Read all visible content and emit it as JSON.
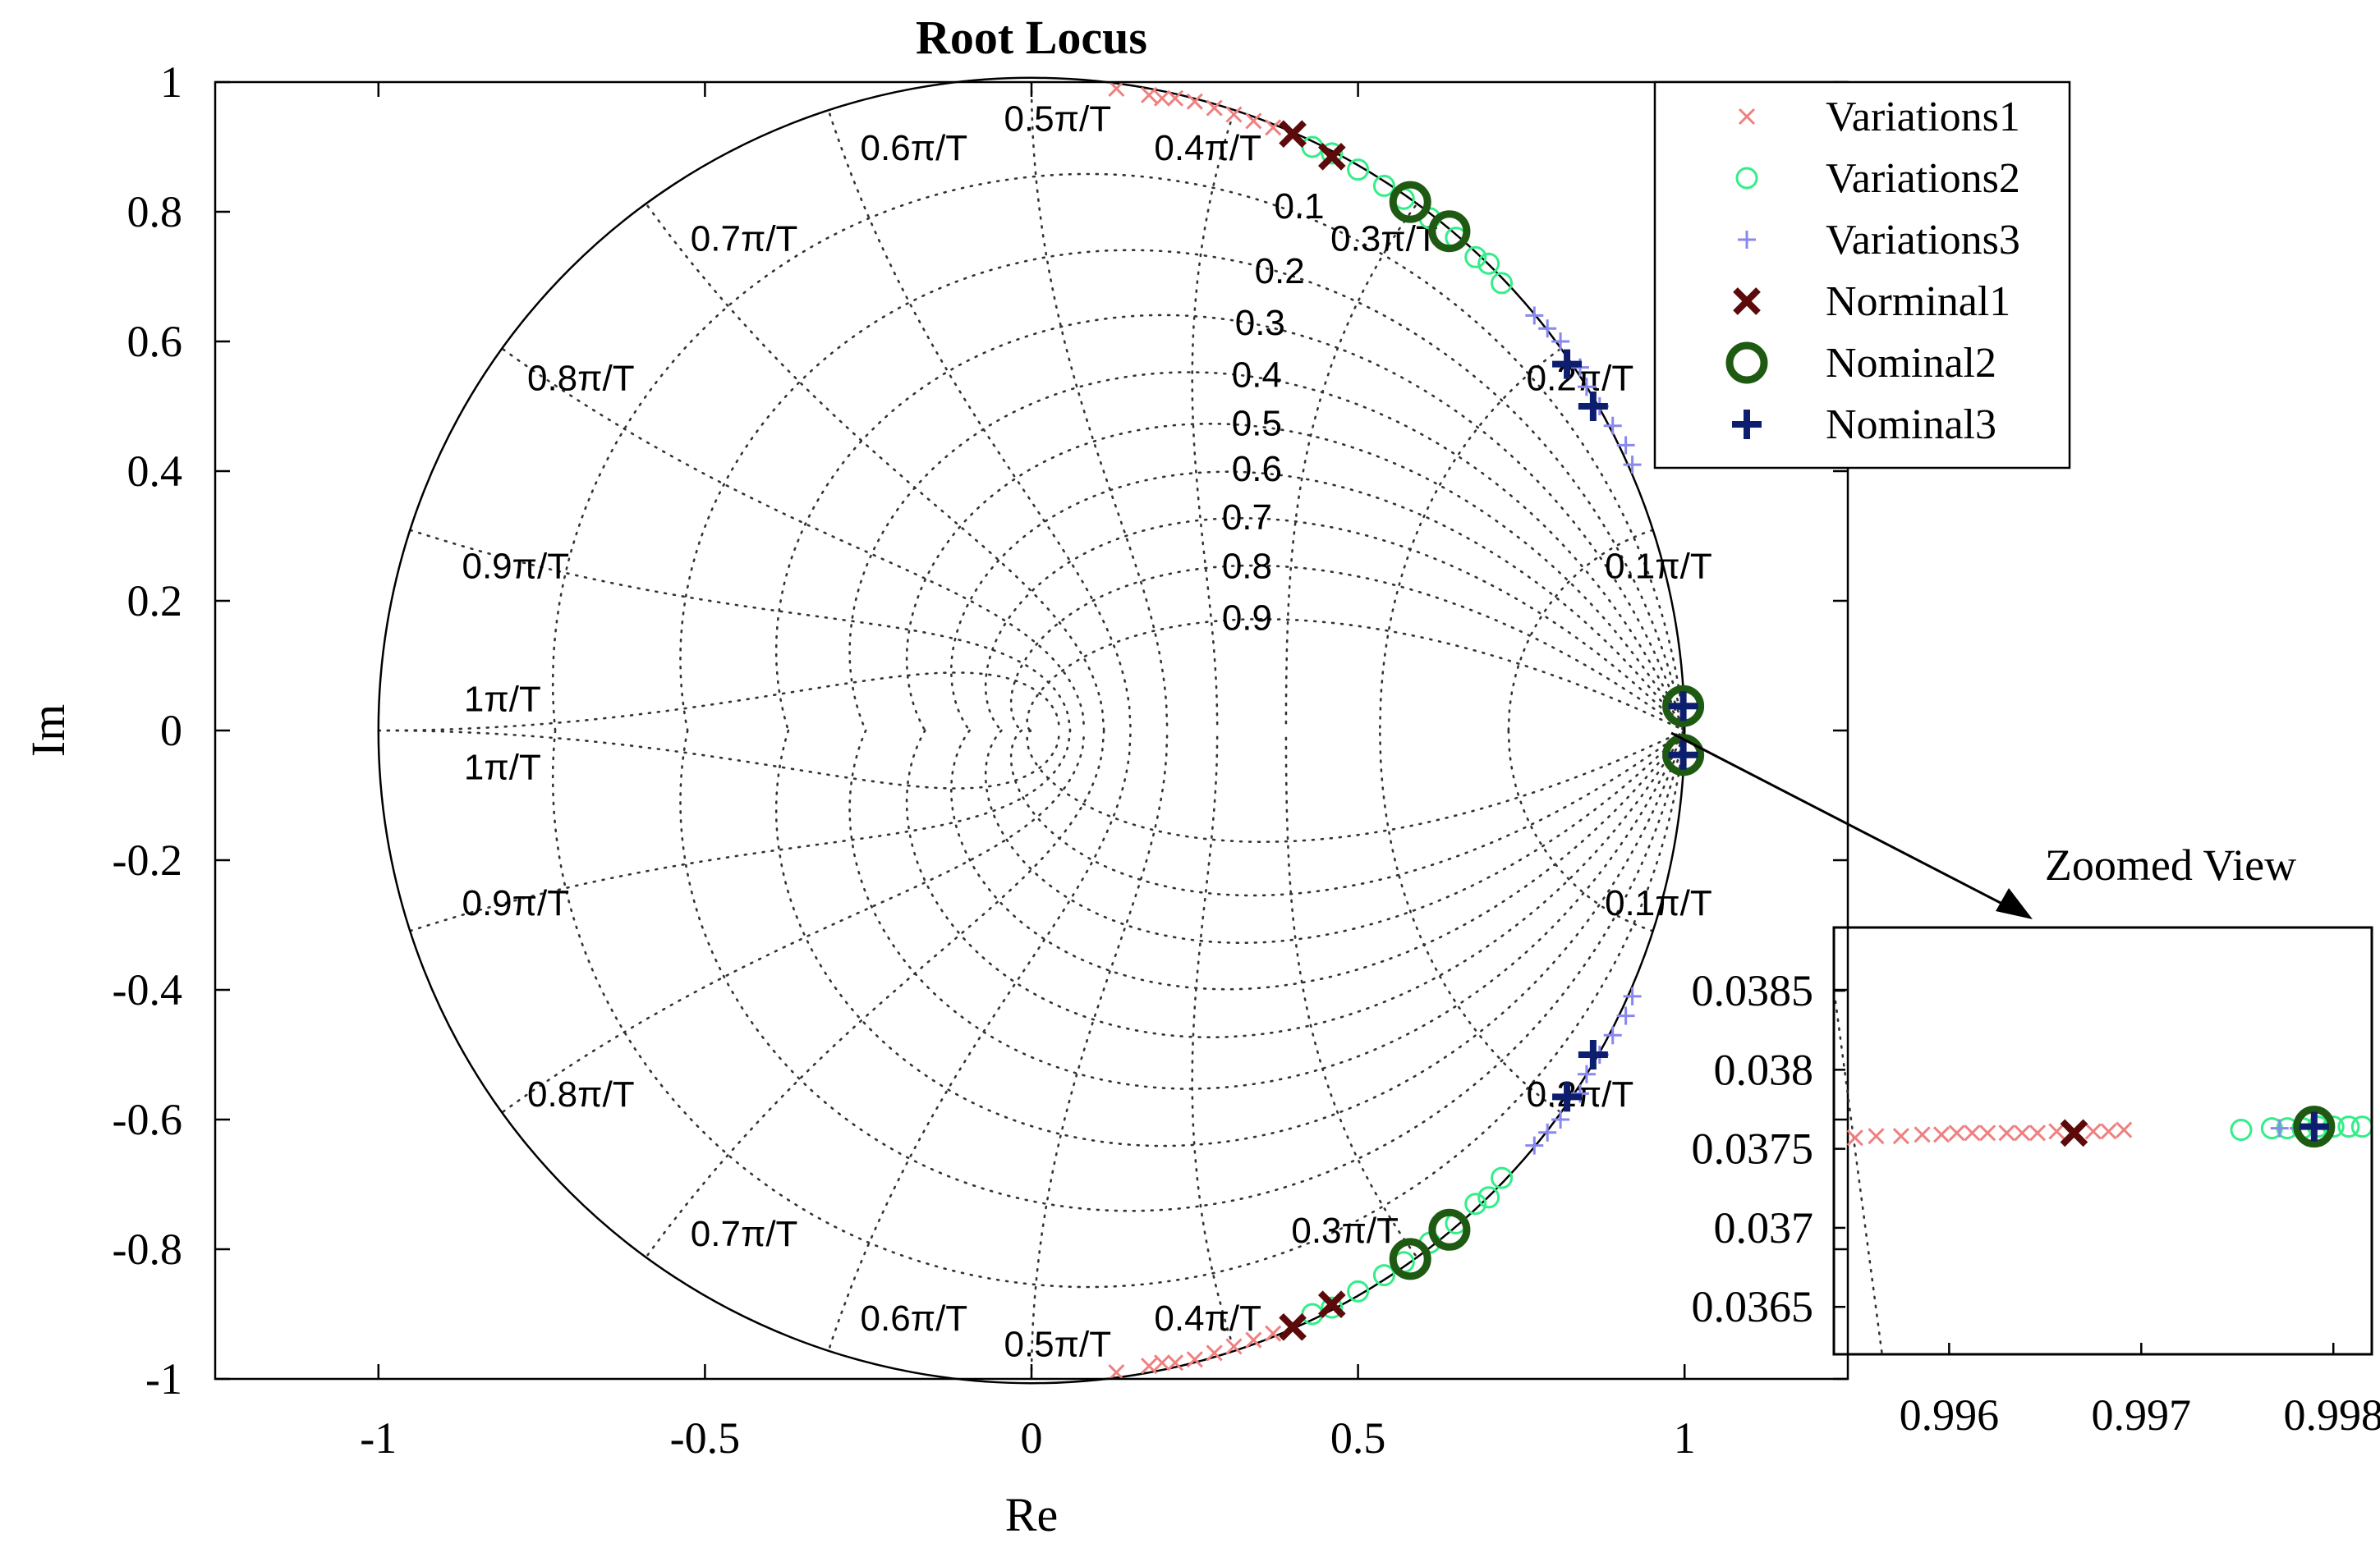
{
  "colors": {
    "variations1": "#f08080",
    "variations2": "#33ee88",
    "variations3": "#8888ee",
    "nominal1": "#5c0a0a",
    "nominal2": "#1f5a12",
    "nominal3": "#0e1e6e"
  },
  "chart_data": [
    {
      "type": "scatter",
      "title": "Root Locus",
      "xlabel": "Re",
      "ylabel": "Im",
      "xlim": [
        -1.25,
        1.25
      ],
      "ylim": [
        -1,
        1
      ],
      "xticks": [
        -1,
        -0.5,
        0,
        0.5,
        1
      ],
      "xtick_labels": [
        "-1",
        "-0.5",
        "0",
        "0.5",
        "1"
      ],
      "yticks": [
        1,
        0.8,
        0.6,
        0.4,
        0.2,
        0,
        -0.2,
        -0.4,
        -0.6,
        -0.8,
        -1
      ],
      "ytick_labels": [
        "1",
        "0.8",
        "0.6",
        "0.4",
        "0.2",
        "0",
        "-0.2",
        "-0.4",
        "-0.6",
        "-0.8",
        "-1"
      ],
      "grid": "zgrid",
      "damping_labels": [
        "0.1",
        "0.2",
        "0.3",
        "0.4",
        "0.5",
        "0.6",
        "0.7",
        "0.8",
        "0.9"
      ],
      "frequency_labels_upper": [
        "0.1π/T",
        "0.2π/T",
        "0.3π/T",
        "0.4π/T",
        "0.5π/T",
        "0.6π/T",
        "0.7π/T",
        "0.8π/T",
        "0.9π/T",
        "1π/T"
      ],
      "frequency_labels_lower": [
        "0.1π/T",
        "0.2π/T",
        "0.3π/T",
        "0.4π/T",
        "0.5π/T",
        "0.6π/T",
        "0.7π/T",
        "0.8π/T",
        "0.9π/T",
        "1π/T"
      ],
      "legend_position": "top-right",
      "series": [
        {
          "name": "Variations1",
          "marker": "x",
          "points": [
            [
              0.13,
              0.99
            ],
            [
              0.18,
              0.98
            ],
            [
              0.22,
              0.975
            ],
            [
              0.25,
              0.97
            ],
            [
              0.28,
              0.96
            ],
            [
              0.31,
              0.95
            ],
            [
              0.34,
              0.94
            ],
            [
              0.37,
              0.93
            ],
            [
              0.2,
              0.975
            ],
            [
              0.13,
              -0.99
            ],
            [
              0.18,
              -0.98
            ],
            [
              0.22,
              -0.975
            ],
            [
              0.25,
              -0.97
            ],
            [
              0.28,
              -0.96
            ],
            [
              0.31,
              -0.95
            ],
            [
              0.34,
              -0.94
            ],
            [
              0.37,
              -0.93
            ],
            [
              0.2,
              -0.975
            ]
          ]
        },
        {
          "name": "Variations2",
          "marker": "o",
          "points": [
            [
              0.43,
              0.9
            ],
            [
              0.46,
              0.89
            ],
            [
              0.5,
              0.865
            ],
            [
              0.54,
              0.84
            ],
            [
              0.57,
              0.82
            ],
            [
              0.61,
              0.79
            ],
            [
              0.65,
              0.76
            ],
            [
              0.68,
              0.73
            ],
            [
              0.7,
              0.72
            ],
            [
              0.72,
              0.69
            ],
            [
              0.43,
              -0.9
            ],
            [
              0.46,
              -0.89
            ],
            [
              0.5,
              -0.865
            ],
            [
              0.54,
              -0.84
            ],
            [
              0.57,
              -0.82
            ],
            [
              0.61,
              -0.79
            ],
            [
              0.65,
              -0.76
            ],
            [
              0.68,
              -0.73
            ],
            [
              0.7,
              -0.72
            ],
            [
              0.72,
              -0.69
            ]
          ]
        },
        {
          "name": "Variations3",
          "marker": "+",
          "points": [
            [
              0.77,
              0.64
            ],
            [
              0.79,
              0.62
            ],
            [
              0.81,
              0.6
            ],
            [
              0.84,
              0.56
            ],
            [
              0.85,
              0.53
            ],
            [
              0.87,
              0.5
            ],
            [
              0.89,
              0.47
            ],
            [
              0.91,
              0.44
            ],
            [
              0.92,
              0.41
            ],
            [
              0.77,
              -0.64
            ],
            [
              0.79,
              -0.62
            ],
            [
              0.81,
              -0.6
            ],
            [
              0.84,
              -0.56
            ],
            [
              0.85,
              -0.53
            ],
            [
              0.87,
              -0.5
            ],
            [
              0.89,
              -0.47
            ],
            [
              0.91,
              -0.44
            ],
            [
              0.92,
              -0.41
            ]
          ]
        },
        {
          "name": "Norminal1",
          "marker": "X",
          "points": [
            [
              0.4,
              0.92
            ],
            [
              0.46,
              0.885
            ],
            [
              0.4,
              -0.92
            ],
            [
              0.46,
              -0.885
            ]
          ]
        },
        {
          "name": "Nominal2",
          "marker": "O",
          "points": [
            [
              0.58,
              0.815
            ],
            [
              0.64,
              0.77
            ],
            [
              0.58,
              -0.815
            ],
            [
              0.64,
              -0.77
            ],
            [
              0.998,
              0.0377
            ],
            [
              0.998,
              -0.0377
            ]
          ]
        },
        {
          "name": "Nominal3",
          "marker": "P",
          "points": [
            [
              0.82,
              0.565
            ],
            [
              0.86,
              0.5
            ],
            [
              0.82,
              -0.565
            ],
            [
              0.86,
              -0.5
            ],
            [
              0.998,
              0.0377
            ],
            [
              0.998,
              -0.0377
            ]
          ]
        }
      ]
    },
    {
      "type": "scatter",
      "title": "Zoomed View",
      "xlim": [
        0.9954,
        0.9982
      ],
      "ylim": [
        0.0362,
        0.0389
      ],
      "xticks": [
        0.996,
        0.997,
        0.998
      ],
      "xtick_labels": [
        "0.996",
        "0.997",
        "0.998"
      ],
      "yticks": [
        0.0385,
        0.038,
        0.0375,
        0.037,
        0.0365
      ],
      "ytick_labels": [
        "0.0385",
        "0.038",
        "0.0375",
        "0.037",
        "0.0365"
      ],
      "series": [
        {
          "name": "Variations1",
          "marker": "x",
          "points": [
            [
              0.99551,
              0.03757
            ],
            [
              0.99562,
              0.03758
            ],
            [
              0.99575,
              0.03758
            ],
            [
              0.99586,
              0.03759
            ],
            [
              0.99596,
              0.03759
            ],
            [
              0.99604,
              0.0376
            ],
            [
              0.99612,
              0.0376
            ],
            [
              0.9962,
              0.0376
            ],
            [
              0.9963,
              0.0376
            ],
            [
              0.99638,
              0.0376
            ],
            [
              0.99646,
              0.0376
            ],
            [
              0.99656,
              0.03761
            ],
            [
              0.99665,
              0.03761
            ],
            [
              0.99675,
              0.03761
            ],
            [
              0.99683,
              0.03761
            ],
            [
              0.99691,
              0.03762
            ]
          ]
        },
        {
          "name": "Variations2",
          "marker": "o",
          "points": [
            [
              0.99752,
              0.03762
            ],
            [
              0.99768,
              0.03763
            ],
            [
              0.99776,
              0.03763
            ],
            [
              0.99784,
              0.03763
            ],
            [
              0.99792,
              0.03764
            ],
            [
              0.998,
              0.03764
            ],
            [
              0.99808,
              0.03764
            ],
            [
              0.99815,
              0.03764
            ]
          ]
        },
        {
          "name": "Variations3",
          "marker": "+",
          "points": [
            [
              0.99772,
              0.03763
            ],
            [
              0.99782,
              0.03763
            ],
            [
              0.9979,
              0.03764
            ]
          ]
        },
        {
          "name": "Norminal1",
          "marker": "X",
          "points": [
            [
              0.99665,
              0.0376
            ]
          ]
        },
        {
          "name": "Nominal2",
          "marker": "O",
          "points": [
            [
              0.9979,
              0.03764
            ]
          ]
        },
        {
          "name": "Nominal3",
          "marker": "P",
          "points": [
            [
              0.9979,
              0.03764
            ]
          ]
        }
      ]
    }
  ]
}
